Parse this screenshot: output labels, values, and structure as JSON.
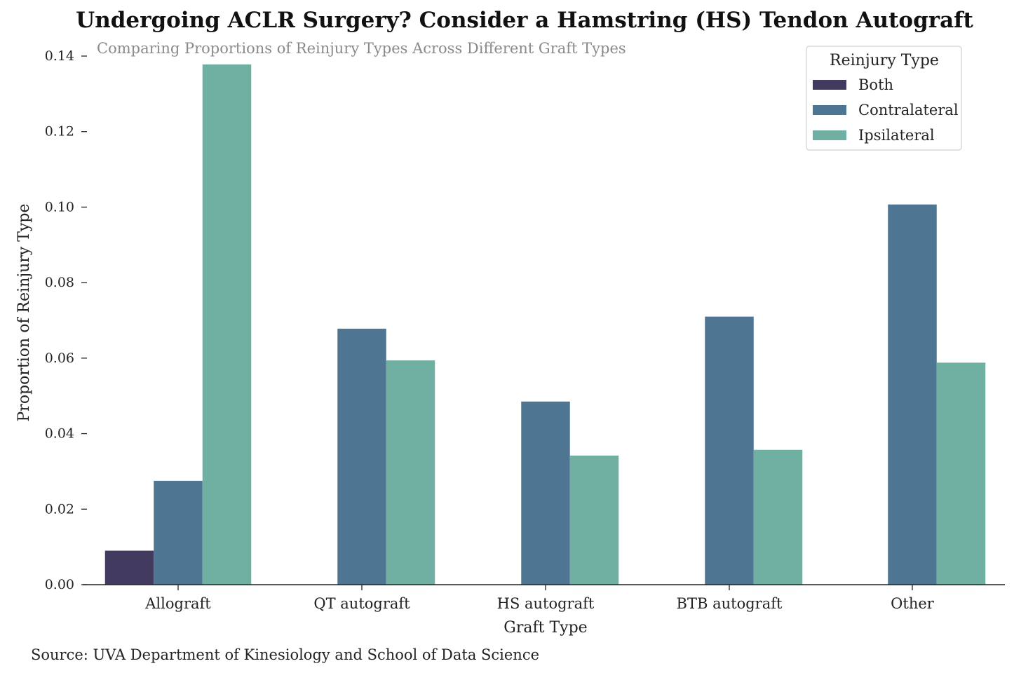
{
  "chart_data": {
    "type": "bar",
    "title": "Undergoing ACLR Surgery? Consider a Hamstring (HS) Tendon Autograft",
    "subtitle": "Comparing Proportions of Reinjury Types Across Different Graft Types",
    "xlabel": "Graft Type",
    "ylabel": "Proportion of Reinjury Type",
    "categories": [
      "Allograft",
      "QT autograft",
      "HS autograft",
      "BTB autograft",
      "Other"
    ],
    "series": [
      {
        "name": "Both",
        "color": "#433a60",
        "values": [
          0.009,
          null,
          null,
          null,
          null
        ]
      },
      {
        "name": "Contralateral",
        "color": "#4e7592",
        "values": [
          0.0275,
          0.0678,
          0.0485,
          0.071,
          0.1007
        ]
      },
      {
        "name": "Ipsilateral",
        "color": "#70b0a3",
        "values": [
          0.1378,
          0.0594,
          0.0342,
          0.0357,
          0.0588
        ]
      }
    ],
    "ylim": [
      0,
      0.14
    ],
    "yticks": [
      "0.00",
      "0.02",
      "0.04",
      "0.06",
      "0.08",
      "0.10",
      "0.12",
      "0.14"
    ],
    "legend_title": "Reinjury Type",
    "legend_position": "top-right",
    "grid": false
  },
  "source": "Source: UVA Department of Kinesiology and School of Data Science"
}
